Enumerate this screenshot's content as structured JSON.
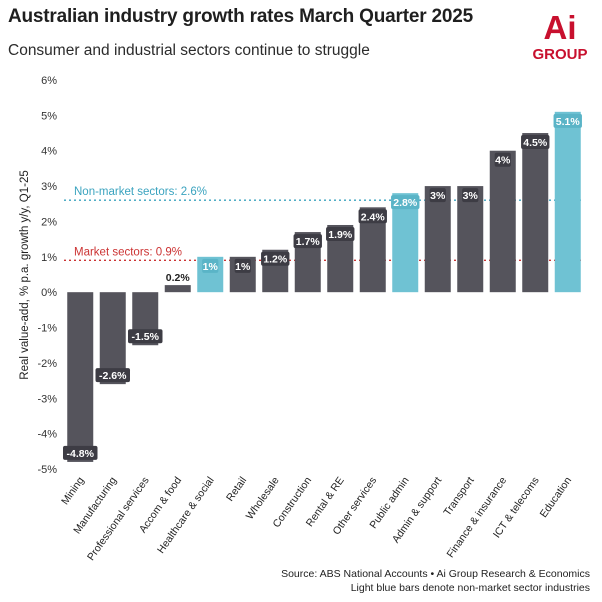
{
  "header": {
    "title": "Australian industry growth rates March Quarter 2025",
    "subtitle": "Consumer and industrial sectors continue to struggle"
  },
  "logo": {
    "text_top": "Ai",
    "text_bottom": "GROUP",
    "color": "#c8102e"
  },
  "colors": {
    "market_bar": "#55545c",
    "non_market_bar": "#6fc2d3",
    "market_line": "#cc3333",
    "non_market_line": "#3aa3bf"
  },
  "chart_data": {
    "type": "bar",
    "ylabel": "Real value-add, % p.a. growth y/y, Q1-25",
    "ylim": [
      -5,
      6
    ],
    "yticks": [
      "-5%",
      "-4%",
      "-3%",
      "-2%",
      "-1%",
      "0%",
      "1%",
      "2%",
      "3%",
      "4%",
      "5%",
      "6%"
    ],
    "grid": false,
    "categories": [
      "Mining",
      "Manufacturing",
      "Professional services",
      "Accom & food",
      "Healthcare & social",
      "Retail",
      "Wholesale",
      "Construction",
      "Rental & RE",
      "Other services",
      "Public admin",
      "Admin & support",
      "Transport",
      "Finance & insurance",
      "ICT & telecoms",
      "Education"
    ],
    "values": [
      -4.8,
      -2.6,
      -1.5,
      0.2,
      1.0,
      1.0,
      1.2,
      1.7,
      1.9,
      2.4,
      2.8,
      3.0,
      3.0,
      4.0,
      4.5,
      5.1
    ],
    "labels": [
      "-4.8%",
      "-2.6%",
      "-1.5%",
      "0.2%",
      "1%",
      "1%",
      "1.2%",
      "1.7%",
      "1.9%",
      "2.4%",
      "2.8%",
      "3%",
      "3%",
      "4%",
      "4.5%",
      "5.1%"
    ],
    "non_market": [
      false,
      false,
      false,
      false,
      true,
      false,
      false,
      false,
      false,
      false,
      true,
      false,
      false,
      false,
      false,
      true
    ],
    "reference_lines": [
      {
        "label": "Non-market sectors: 2.6%",
        "value": 2.6,
        "kind": "non_market"
      },
      {
        "label": "Market sectors: 0.9%",
        "value": 0.9,
        "kind": "market"
      }
    ]
  },
  "footer": {
    "source_line1": "Source: ABS National Accounts • Ai Group Research & Economics",
    "source_line2": "Light blue bars denote non-market sector industries"
  }
}
